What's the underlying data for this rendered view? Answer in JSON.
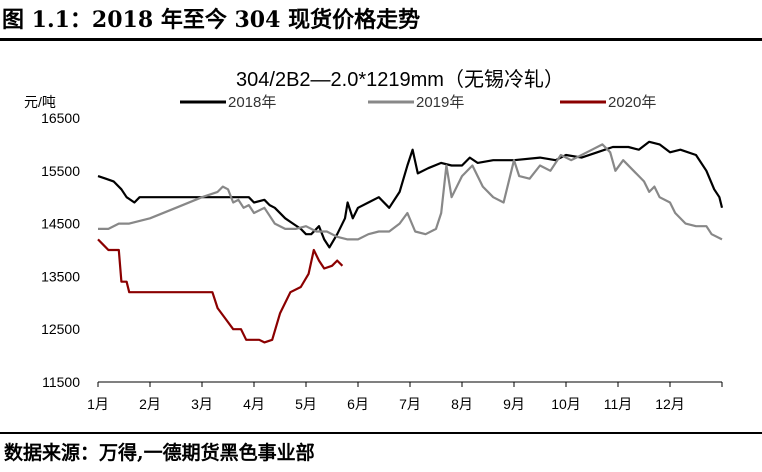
{
  "figure": {
    "title": "图 1.1：2018 年至今 304 现货价格走势",
    "source": "数据来源：万得,一德期货黑色事业部"
  },
  "chart_data": {
    "type": "line",
    "title": "304/2B2—2.0*1219mm（无锡冷轧）",
    "ylabel": "元/吨",
    "xlabel": "",
    "ylim": [
      11500,
      16500
    ],
    "yticks": [
      11500,
      12500,
      13500,
      14500,
      15500,
      16500
    ],
    "xlim": [
      0,
      12
    ],
    "categories": [
      "1月",
      "2月",
      "3月",
      "4月",
      "5月",
      "6月",
      "7月",
      "8月",
      "9月",
      "10月",
      "11月",
      "12月"
    ],
    "grid": false,
    "legend_position": "top",
    "series": [
      {
        "name": "2018年",
        "color": "#000000",
        "points": [
          [
            0,
            15400
          ],
          [
            0.15,
            15350
          ],
          [
            0.3,
            15300
          ],
          [
            0.45,
            15150
          ],
          [
            0.55,
            15000
          ],
          [
            0.7,
            14900
          ],
          [
            0.8,
            15000
          ],
          [
            1.5,
            15000
          ],
          [
            2.5,
            15000
          ],
          [
            2.9,
            15000
          ],
          [
            3.0,
            14900
          ],
          [
            3.2,
            14950
          ],
          [
            3.3,
            14850
          ],
          [
            3.4,
            14800
          ],
          [
            3.6,
            14600
          ],
          [
            3.75,
            14500
          ],
          [
            3.9,
            14400
          ],
          [
            4.0,
            14300
          ],
          [
            4.1,
            14300
          ],
          [
            4.25,
            14450
          ],
          [
            4.35,
            14200
          ],
          [
            4.45,
            14050
          ],
          [
            4.6,
            14300
          ],
          [
            4.75,
            14600
          ],
          [
            4.8,
            14900
          ],
          [
            4.9,
            14600
          ],
          [
            5.0,
            14800
          ],
          [
            5.2,
            14900
          ],
          [
            5.4,
            15000
          ],
          [
            5.6,
            14800
          ],
          [
            5.8,
            15100
          ],
          [
            5.95,
            15600
          ],
          [
            6.05,
            15900
          ],
          [
            6.15,
            15450
          ],
          [
            6.35,
            15550
          ],
          [
            6.6,
            15650
          ],
          [
            6.8,
            15600
          ],
          [
            7.0,
            15600
          ],
          [
            7.15,
            15750
          ],
          [
            7.3,
            15650
          ],
          [
            7.6,
            15700
          ],
          [
            8.0,
            15700
          ],
          [
            8.5,
            15750
          ],
          [
            8.8,
            15700
          ],
          [
            9.0,
            15800
          ],
          [
            9.3,
            15750
          ],
          [
            9.6,
            15850
          ],
          [
            9.9,
            15950
          ],
          [
            10.2,
            15950
          ],
          [
            10.4,
            15900
          ],
          [
            10.6,
            16050
          ],
          [
            10.8,
            16000
          ],
          [
            11.0,
            15850
          ],
          [
            11.2,
            15900
          ],
          [
            11.5,
            15800
          ],
          [
            11.7,
            15500
          ],
          [
            11.85,
            15150
          ],
          [
            11.95,
            15000
          ],
          [
            12.0,
            14800
          ]
        ]
      },
      {
        "name": "2019年",
        "color": "#888888",
        "points": [
          [
            0,
            14400
          ],
          [
            0.2,
            14400
          ],
          [
            0.4,
            14500
          ],
          [
            0.6,
            14500
          ],
          [
            1.0,
            14600
          ],
          [
            1.5,
            14800
          ],
          [
            2.0,
            15000
          ],
          [
            2.3,
            15100
          ],
          [
            2.4,
            15200
          ],
          [
            2.5,
            15150
          ],
          [
            2.6,
            14900
          ],
          [
            2.7,
            14950
          ],
          [
            2.8,
            14800
          ],
          [
            2.9,
            14850
          ],
          [
            3.0,
            14700
          ],
          [
            3.2,
            14800
          ],
          [
            3.3,
            14650
          ],
          [
            3.4,
            14500
          ],
          [
            3.6,
            14400
          ],
          [
            3.8,
            14400
          ],
          [
            4.0,
            14450
          ],
          [
            4.2,
            14350
          ],
          [
            4.4,
            14350
          ],
          [
            4.6,
            14250
          ],
          [
            4.8,
            14200
          ],
          [
            5.0,
            14200
          ],
          [
            5.2,
            14300
          ],
          [
            5.4,
            14350
          ],
          [
            5.6,
            14350
          ],
          [
            5.8,
            14500
          ],
          [
            5.95,
            14700
          ],
          [
            6.1,
            14350
          ],
          [
            6.3,
            14300
          ],
          [
            6.5,
            14400
          ],
          [
            6.6,
            14700
          ],
          [
            6.7,
            15600
          ],
          [
            6.8,
            15000
          ],
          [
            7.0,
            15400
          ],
          [
            7.2,
            15600
          ],
          [
            7.4,
            15200
          ],
          [
            7.6,
            15000
          ],
          [
            7.8,
            14900
          ],
          [
            8.0,
            15700
          ],
          [
            8.1,
            15400
          ],
          [
            8.3,
            15350
          ],
          [
            8.5,
            15600
          ],
          [
            8.7,
            15500
          ],
          [
            8.9,
            15800
          ],
          [
            9.1,
            15700
          ],
          [
            9.3,
            15800
          ],
          [
            9.5,
            15900
          ],
          [
            9.7,
            16000
          ],
          [
            9.85,
            15850
          ],
          [
            9.95,
            15500
          ],
          [
            10.1,
            15700
          ],
          [
            10.3,
            15500
          ],
          [
            10.5,
            15300
          ],
          [
            10.6,
            15100
          ],
          [
            10.7,
            15200
          ],
          [
            10.8,
            15000
          ],
          [
            11.0,
            14900
          ],
          [
            11.1,
            14700
          ],
          [
            11.3,
            14500
          ],
          [
            11.5,
            14450
          ],
          [
            11.7,
            14450
          ],
          [
            11.8,
            14300
          ],
          [
            12.0,
            14200
          ]
        ]
      },
      {
        "name": "2020年",
        "color": "#8b0000",
        "points": [
          [
            0,
            14200
          ],
          [
            0.1,
            14100
          ],
          [
            0.2,
            14000
          ],
          [
            0.4,
            14000
          ],
          [
            0.45,
            13400
          ],
          [
            0.55,
            13400
          ],
          [
            0.6,
            13200
          ],
          [
            0.8,
            13200
          ],
          [
            1.5,
            13200
          ],
          [
            2.0,
            13200
          ],
          [
            2.2,
            13200
          ],
          [
            2.3,
            12900
          ],
          [
            2.45,
            12700
          ],
          [
            2.6,
            12500
          ],
          [
            2.75,
            12500
          ],
          [
            2.85,
            12300
          ],
          [
            3.1,
            12300
          ],
          [
            3.2,
            12250
          ],
          [
            3.35,
            12300
          ],
          [
            3.5,
            12800
          ],
          [
            3.7,
            13200
          ],
          [
            3.9,
            13300
          ],
          [
            4.05,
            13550
          ],
          [
            4.15,
            14000
          ],
          [
            4.25,
            13800
          ],
          [
            4.35,
            13650
          ],
          [
            4.5,
            13700
          ],
          [
            4.6,
            13800
          ],
          [
            4.7,
            13700
          ]
        ]
      }
    ]
  }
}
